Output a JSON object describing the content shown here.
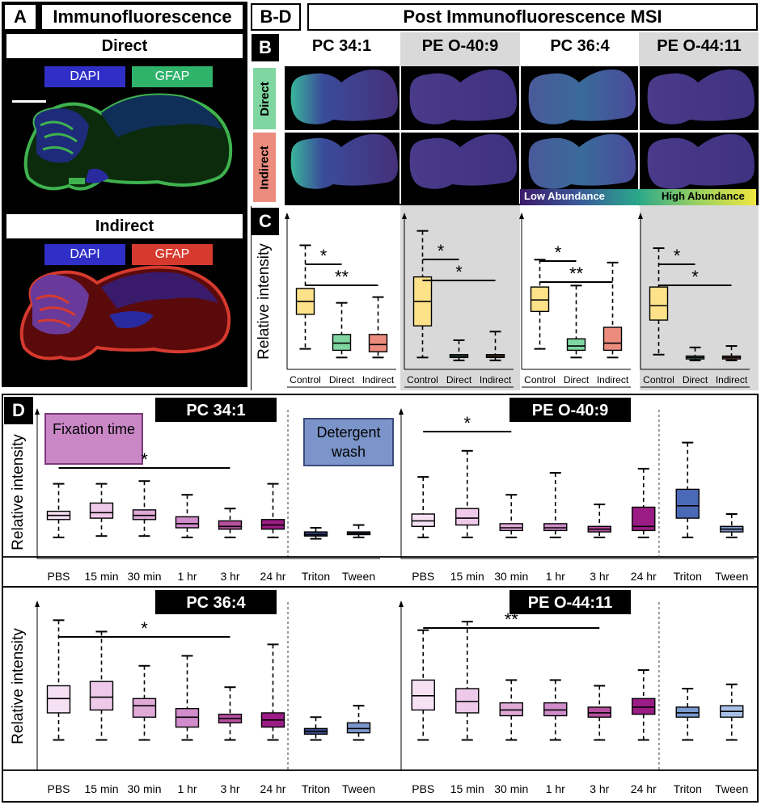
{
  "panelA": {
    "letter": "A",
    "title": "Immunofluorescence",
    "direct_title": "Direct",
    "indirect_title": "Indirect",
    "dapi_label": "DAPI",
    "gfap_label": "GFAP",
    "colors": {
      "dapi": "#2f2fc8",
      "gfap_direct": "#3fb24f",
      "gfap_indirect": "#d63a2e"
    }
  },
  "panelBD": {
    "letter": "B-D",
    "title": "Post Immunofluorescence MSI"
  },
  "panelB": {
    "letter": "B",
    "lipids": [
      "PC 34:1",
      "PE O-40:9",
      "PC 36:4",
      "PE O-44:11"
    ],
    "row_direct": "Direct",
    "row_indirect": "Indirect",
    "colorbar_low": "Low Abundance",
    "colorbar_high": "High Abundance"
  },
  "panelC": {
    "letter": "C",
    "ylabel": "Relative intensity",
    "categories": [
      "Control",
      "Direct",
      "Indirect"
    ]
  },
  "panelD": {
    "letter": "D",
    "ylabel": "Relative intensity",
    "fixation_label": "Fixation time",
    "detergent_label": "Detergent wash",
    "categories": [
      "PBS",
      "15 min",
      "30 min",
      "1 hr",
      "3 hr",
      "24 hr",
      "Triton",
      "Tween"
    ]
  },
  "chart_data": [
    {
      "type": "box",
      "panel": "C",
      "title": "PC 34:1",
      "ylabel": "Relative intensity",
      "categories": [
        "Control",
        "Direct",
        "Indirect"
      ],
      "boxes": [
        [
          12,
          36,
          45,
          54,
          84
        ],
        [
          6,
          11,
          16,
          22,
          44
        ],
        [
          6,
          10,
          15,
          22,
          48
        ]
      ],
      "significance": [
        {
          "from": 0,
          "to": 1,
          "label": "*"
        },
        {
          "from": 0,
          "to": 2,
          "label": "**"
        }
      ]
    },
    {
      "type": "box",
      "panel": "C",
      "title": "PE O-40:9",
      "ylabel": "Relative intensity",
      "categories": [
        "Control",
        "Direct",
        "Indirect"
      ],
      "boxes": [
        [
          6,
          28,
          45,
          62,
          94
        ],
        [
          4,
          6,
          7,
          8,
          18
        ],
        [
          4,
          6,
          7,
          8,
          24
        ]
      ],
      "significance": [
        {
          "from": 0,
          "to": 1,
          "label": "*"
        },
        {
          "from": 0,
          "to": 2,
          "label": "*"
        }
      ]
    },
    {
      "type": "box",
      "panel": "C",
      "title": "PC 36:4",
      "ylabel": "Relative intensity",
      "categories": [
        "Control",
        "Direct",
        "Indirect"
      ],
      "boxes": [
        [
          12,
          38,
          46,
          55,
          74
        ],
        [
          6,
          11,
          14,
          19,
          56
        ],
        [
          6,
          11,
          16,
          27,
          72
        ]
      ],
      "significance": [
        {
          "from": 0,
          "to": 1,
          "label": "*"
        },
        {
          "from": 0,
          "to": 2,
          "label": "**"
        }
      ]
    },
    {
      "type": "box",
      "panel": "C",
      "title": "PE O-44:11",
      "ylabel": "Relative intensity",
      "categories": [
        "Control",
        "Direct",
        "Indirect"
      ],
      "boxes": [
        [
          8,
          32,
          42,
          55,
          82
        ],
        [
          4,
          5,
          6,
          7,
          13
        ],
        [
          4,
          5,
          6,
          7,
          14
        ]
      ],
      "significance": [
        {
          "from": 0,
          "to": 1,
          "label": "*"
        },
        {
          "from": 0,
          "to": 2,
          "label": "*"
        }
      ]
    },
    {
      "type": "box",
      "panel": "D",
      "title": "PC 34:1",
      "ylabel": "Relative intensity",
      "categories": [
        "PBS",
        "15 min",
        "30 min",
        "1 hr",
        "3 hr",
        "24 hr",
        "Triton",
        "Tween"
      ],
      "boxes": [
        [
          13,
          26,
          29,
          32,
          52
        ],
        [
          14,
          27,
          31,
          38,
          52
        ],
        [
          14,
          26,
          29,
          33,
          54
        ],
        [
          13,
          20,
          23,
          28,
          44
        ],
        [
          13,
          19,
          21,
          25,
          34
        ],
        [
          13,
          19,
          22,
          26,
          52
        ],
        [
          12,
          14,
          15,
          17,
          20
        ],
        [
          13,
          15,
          16,
          17,
          22
        ]
      ],
      "significance": [
        {
          "from": 0,
          "to": 4,
          "label": "*"
        }
      ]
    },
    {
      "type": "box",
      "panel": "D",
      "title": "PE O-40:9",
      "ylabel": "Relative intensity",
      "categories": [
        "PBS",
        "15 min",
        "30 min",
        "1 hr",
        "3 hr",
        "24 hr",
        "Triton",
        "Tween"
      ],
      "boxes": [
        [
          13,
          21,
          25,
          30,
          57
        ],
        [
          13,
          22,
          27,
          34,
          76
        ],
        [
          13,
          18,
          20,
          23,
          44
        ],
        [
          13,
          18,
          20,
          23,
          60
        ],
        [
          13,
          17,
          19,
          21,
          37
        ],
        [
          13,
          18,
          21,
          35,
          63
        ],
        [
          13,
          27,
          36,
          48,
          82
        ],
        [
          13,
          17,
          19,
          21,
          30
        ]
      ],
      "significance": [
        {
          "from": 0,
          "to": 2,
          "label": "*"
        }
      ]
    },
    {
      "type": "box",
      "panel": "D",
      "title": "PC 36:4",
      "ylabel": "Relative intensity",
      "categories": [
        "PBS",
        "15 min",
        "30 min",
        "1 hr",
        "3 hr",
        "24 hr",
        "Triton",
        "Tween"
      ],
      "boxes": [
        [
          19,
          38,
          48,
          57,
          103
        ],
        [
          19,
          40,
          49,
          60,
          95
        ],
        [
          19,
          35,
          43,
          48,
          71
        ],
        [
          19,
          28,
          35,
          41,
          78
        ],
        [
          19,
          31,
          34,
          37,
          56
        ],
        [
          19,
          28,
          33,
          38,
          86
        ],
        [
          19,
          23,
          25,
          27,
          35
        ],
        [
          19,
          24,
          27,
          31,
          43
        ]
      ],
      "significance": [
        {
          "from": 0,
          "to": 4,
          "label": "*"
        }
      ]
    },
    {
      "type": "box",
      "panel": "D",
      "title": "PE O-44:11",
      "ylabel": "Relative intensity",
      "categories": [
        "PBS",
        "15 min",
        "30 min",
        "1 hr",
        "3 hr",
        "24 hr",
        "Triton",
        "Tween"
      ],
      "boxes": [
        [
          19,
          40,
          50,
          61,
          96
        ],
        [
          19,
          38,
          46,
          55,
          102
        ],
        [
          19,
          36,
          40,
          45,
          61
        ],
        [
          19,
          36,
          40,
          45,
          61
        ],
        [
          19,
          35,
          38,
          42,
          57
        ],
        [
          19,
          37,
          42,
          48,
          68
        ],
        [
          19,
          35,
          38,
          42,
          55
        ],
        [
          19,
          35,
          39,
          43,
          58
        ]
      ],
      "significance": [
        {
          "from": 0,
          "to": 4,
          "label": "**"
        }
      ]
    }
  ]
}
